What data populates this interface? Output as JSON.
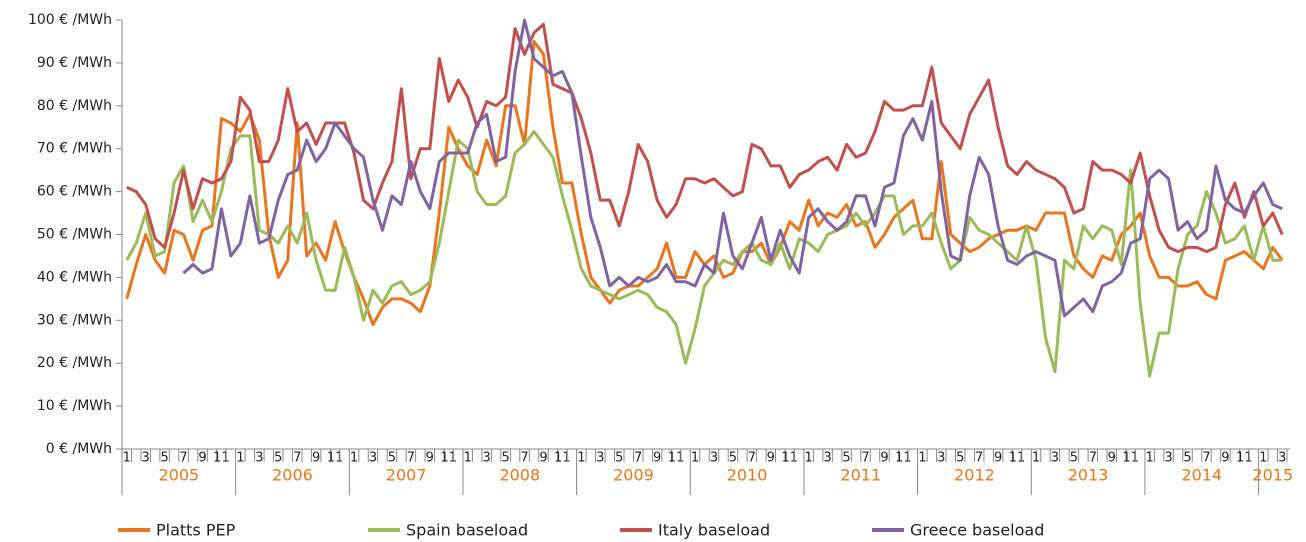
{
  "chart_data": {
    "type": "line",
    "categories": [
      "1",
      null,
      "3",
      null,
      "5",
      null,
      "7",
      null,
      "9",
      null,
      "11",
      null,
      "1",
      null,
      "3",
      null,
      "5",
      null,
      "7",
      null,
      "9",
      null,
      "11",
      null,
      "1",
      null,
      "3",
      null,
      "5",
      null,
      "7",
      null,
      "9",
      null,
      "11",
      null,
      "1",
      null,
      "3",
      null,
      "5",
      null,
      "7",
      null,
      "9",
      null,
      "11",
      null,
      "1",
      null,
      "3",
      null,
      "5",
      null,
      "7",
      null,
      "9",
      null,
      "11",
      null,
      "1",
      null,
      "3",
      null,
      "5",
      null,
      "7",
      null,
      "9",
      null,
      "11",
      null,
      "1",
      null,
      "3",
      null,
      "5",
      null,
      "7",
      null,
      "9",
      null,
      "11",
      null,
      "1",
      null,
      "3",
      null,
      "5",
      null,
      "7",
      null,
      "9",
      null,
      "11",
      null,
      "1",
      null,
      "3",
      null,
      "5",
      null,
      "7",
      null,
      "9",
      null,
      "11",
      null,
      "1",
      null,
      "3",
      null,
      "5",
      null,
      "7",
      null,
      "9",
      null,
      "11",
      null,
      "1",
      null,
      "3"
    ],
    "years": [
      "2005",
      "2006",
      "2007",
      "2008",
      "2009",
      "2010",
      "2011",
      "2012",
      "2013",
      "2014",
      "2015"
    ],
    "ylim": [
      0,
      100
    ],
    "yticks": [
      {
        "value": 0,
        "label": "0  € /MWh"
      },
      {
        "value": 10,
        "label": "10  € /MWh"
      },
      {
        "value": 20,
        "label": "20  € /MWh"
      },
      {
        "value": 30,
        "label": "30  € /MWh"
      },
      {
        "value": 40,
        "label": "40  € /MWh"
      },
      {
        "value": 50,
        "label": "50  € /MWh"
      },
      {
        "value": 60,
        "label": "60  € /MWh"
      },
      {
        "value": 70,
        "label": "70  € /MWh"
      },
      {
        "value": 80,
        "label": "80  € /MWh"
      },
      {
        "value": 90,
        "label": "90  € /MWh"
      },
      {
        "value": 100,
        "label": "100 € /MWh"
      }
    ],
    "grid": false,
    "series": [
      {
        "name": "Platts PEP",
        "color": "#e8761e",
        "values": [
          35,
          43,
          50,
          44,
          41,
          51,
          50,
          44,
          51,
          52,
          77,
          76,
          74,
          78,
          72,
          50,
          40,
          44,
          76,
          45,
          48,
          44,
          53,
          46,
          40,
          35,
          29,
          33,
          35,
          35,
          34,
          32,
          38,
          55,
          75,
          70,
          66,
          64,
          72,
          66,
          80,
          80,
          71,
          95,
          92,
          75,
          62,
          62,
          50,
          40,
          37,
          34,
          37,
          38,
          38,
          40,
          42,
          48,
          40,
          40,
          46,
          43,
          45,
          40,
          41,
          46,
          46,
          48,
          43,
          47,
          53,
          51,
          58,
          52,
          55,
          54,
          57,
          52,
          53,
          47,
          50,
          54,
          56,
          58,
          49,
          49,
          67,
          50,
          48,
          46,
          47,
          49,
          50,
          51,
          51,
          52,
          51,
          55,
          55,
          55,
          45,
          42,
          40,
          45,
          44,
          50,
          52,
          55,
          45,
          40,
          40,
          38,
          38,
          39,
          36,
          35,
          44,
          45,
          46,
          44,
          42,
          47,
          44
        ]
      },
      {
        "name": "Spain baseload",
        "color": "#9bbb59",
        "values": [
          44,
          48,
          55,
          45,
          46,
          62,
          66,
          53,
          58,
          53,
          60,
          70,
          73,
          73,
          51,
          50,
          48,
          52,
          48,
          55,
          44,
          37,
          37,
          47,
          40,
          30,
          37,
          34,
          38,
          39,
          36,
          37,
          39,
          48,
          60,
          72,
          70,
          60,
          57,
          57,
          59,
          69,
          71,
          74,
          71,
          68,
          59,
          51,
          42,
          38,
          37,
          36,
          35,
          36,
          37,
          36,
          33,
          32,
          29,
          20,
          28,
          38,
          41,
          44,
          43,
          46,
          48,
          44,
          43,
          48,
          42,
          49,
          48,
          46,
          50,
          51,
          52,
          55,
          52,
          55,
          59,
          59,
          50,
          52,
          52,
          55,
          48,
          42,
          44,
          54,
          51,
          50,
          48,
          46,
          44,
          52,
          44,
          26,
          18,
          44,
          42,
          52,
          49,
          52,
          51,
          43,
          65,
          34,
          17,
          27,
          27,
          42,
          50,
          52,
          60,
          55,
          48,
          49,
          52,
          44,
          52,
          44,
          44
        ]
      },
      {
        "name": "Italy baseload",
        "color": "#c0504d",
        "values": [
          61,
          60,
          57,
          49,
          47,
          55,
          65,
          56,
          63,
          62,
          63,
          67,
          82,
          79,
          67,
          67,
          72,
          84,
          74,
          76,
          71,
          76,
          76,
          76,
          69,
          58,
          56,
          62,
          67,
          84,
          63,
          70,
          70,
          91,
          81,
          86,
          82,
          75,
          81,
          80,
          82,
          98,
          92,
          97,
          99,
          85,
          84,
          83,
          77,
          69,
          58,
          58,
          52,
          60,
          71,
          67,
          58,
          54,
          57,
          63,
          63,
          62,
          63,
          61,
          59,
          60,
          71,
          70,
          66,
          66,
          61,
          64,
          65,
          67,
          68,
          65,
          71,
          68,
          69,
          74,
          81,
          79,
          79,
          80,
          80,
          89,
          76,
          73,
          70,
          78,
          82,
          86,
          75,
          66,
          64,
          67,
          65,
          64,
          63,
          61,
          55,
          56,
          67,
          65,
          65,
          64,
          62,
          69,
          59,
          51,
          47,
          46,
          47,
          47,
          46,
          47,
          57,
          62,
          54,
          60,
          52,
          55,
          50
        ]
      },
      {
        "name": "Greece baseload",
        "color": "#8064a2",
        "values": [
          null,
          null,
          null,
          null,
          null,
          null,
          41,
          43,
          41,
          42,
          56,
          45,
          48,
          59,
          48,
          49,
          58,
          64,
          65,
          72,
          67,
          70,
          76,
          73,
          70,
          68,
          58,
          51,
          59,
          57,
          67,
          60,
          56,
          67,
          69,
          69,
          69,
          76,
          78,
          67,
          68,
          88,
          100,
          91,
          89,
          87,
          88,
          83,
          68,
          54,
          47,
          38,
          40,
          38,
          40,
          39,
          40,
          43,
          39,
          39,
          38,
          43,
          41,
          55,
          45,
          42,
          48,
          54,
          44,
          51,
          45,
          41,
          54,
          56,
          53,
          51,
          53,
          59,
          59,
          52,
          61,
          62,
          73,
          77,
          72,
          81,
          60,
          45,
          44,
          59,
          68,
          64,
          52,
          44,
          43,
          45,
          46,
          45,
          44,
          31,
          33,
          35,
          32,
          38,
          39,
          41,
          48,
          49,
          63,
          65,
          63,
          51,
          53,
          49,
          51,
          66,
          58,
          56,
          55,
          59,
          62,
          57,
          56
        ]
      }
    ]
  }
}
